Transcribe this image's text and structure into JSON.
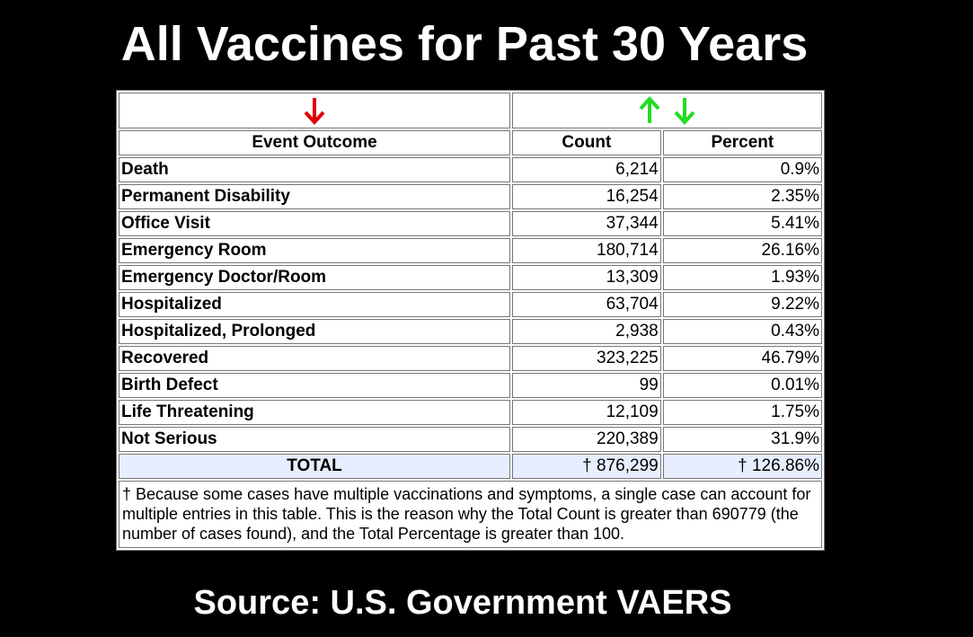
{
  "title": "All Vaccines for Past 30 Years",
  "source": "Source: U.S. Government VAERS",
  "colors": {
    "down_arrow_red": "#e00000",
    "sort_arrows_green": "#22dd22",
    "total_row_bg": "#e6eeff"
  },
  "table": {
    "headers": {
      "outcome": "Event Outcome",
      "count": "Count",
      "percent": "Percent"
    },
    "rows": [
      {
        "outcome": "Death",
        "count": "6,214",
        "percent": "0.9%"
      },
      {
        "outcome": "Permanent Disability",
        "count": "16,254",
        "percent": "2.35%"
      },
      {
        "outcome": "Office Visit",
        "count": "37,344",
        "percent": "5.41%"
      },
      {
        "outcome": "Emergency Room",
        "count": "180,714",
        "percent": "26.16%"
      },
      {
        "outcome": "Emergency Doctor/Room",
        "count": "13,309",
        "percent": "1.93%"
      },
      {
        "outcome": "Hospitalized",
        "count": "63,704",
        "percent": "9.22%"
      },
      {
        "outcome": "Hospitalized, Prolonged",
        "count": "2,938",
        "percent": "0.43%"
      },
      {
        "outcome": "Recovered",
        "count": "323,225",
        "percent": "46.79%"
      },
      {
        "outcome": "Birth Defect",
        "count": "99",
        "percent": "0.01%"
      },
      {
        "outcome": "Life Threatening",
        "count": "12,109",
        "percent": "1.75%"
      },
      {
        "outcome": "Not Serious",
        "count": "220,389",
        "percent": "31.9%"
      }
    ],
    "total": {
      "label": "TOTAL",
      "count": "† 876,299",
      "percent": "† 126.86%"
    },
    "footnote": "† Because some cases have multiple vaccinations and symptoms, a single case can account for multiple entries in this table. This is the reason why the Total Count is greater than 690779 (the number of cases found), and the Total Percentage is greater than 100."
  }
}
